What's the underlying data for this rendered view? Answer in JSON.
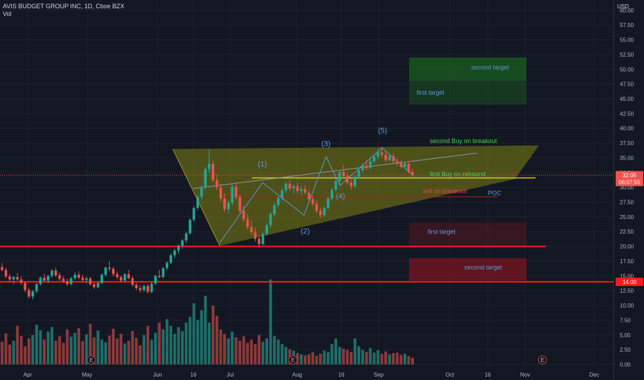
{
  "header": {
    "title": "AVIS BUDGET GROUP INC, 1D, Cboe BZX",
    "sub": "Vol"
  },
  "currency": "USD",
  "colors": {
    "up": "#26a69a",
    "down": "#ef5350",
    "vol_up": "#1f6f68",
    "vol_down": "#8d3a3c",
    "bg": "#131722",
    "grid": "#1e2230",
    "wedge": "#8a8a12",
    "support": "#ff1a1a",
    "target_green": "#1b5e20",
    "target_red": "#7a1520"
  },
  "chart_data": {
    "type": "candlestick",
    "y_axis": {
      "ticks": [
        "60.00",
        "57.50",
        "55.00",
        "52.50",
        "50.00",
        "47.50",
        "45.00",
        "42.50",
        "40.00",
        "37.50",
        "35.00",
        "32.50",
        "30.00",
        "27.50",
        "25.00",
        "22.50",
        "20.00",
        "17.50",
        "15.00",
        "12.50",
        "10.00",
        "7.50",
        "5.00",
        "2.50",
        "0.00"
      ],
      "range": [
        0,
        60
      ]
    },
    "x_axis": {
      "ticks": [
        "Apr",
        "May",
        "Jun",
        "16",
        "Jul",
        "Aug",
        "16",
        "Sep",
        "Oct",
        "16",
        "Nov",
        "Dec"
      ]
    },
    "price_labels": [
      {
        "text": "32.05",
        "value": 32.05,
        "color": "#ef5350"
      },
      {
        "text": "06:07:55",
        "value": 30.9,
        "color": "#ef5350"
      },
      {
        "text": "14.00",
        "value": 14.0,
        "color": "#ff1a1a"
      }
    ],
    "ohlc": [
      [
        16.5,
        17.2,
        15.8,
        16.0
      ],
      [
        16.0,
        16.4,
        14.6,
        14.9
      ],
      [
        14.9,
        15.3,
        13.9,
        14.4
      ],
      [
        14.4,
        15.0,
        13.6,
        14.8
      ],
      [
        14.8,
        15.5,
        14.2,
        14.4
      ],
      [
        14.4,
        14.9,
        13.5,
        13.8
      ],
      [
        13.8,
        14.0,
        12.2,
        12.6
      ],
      [
        12.6,
        13.0,
        11.2,
        11.5
      ],
      [
        11.5,
        12.6,
        11.0,
        12.4
      ],
      [
        12.4,
        13.8,
        12.1,
        13.6
      ],
      [
        13.6,
        14.9,
        13.4,
        14.7
      ],
      [
        14.7,
        15.4,
        14.0,
        14.2
      ],
      [
        14.2,
        15.2,
        13.8,
        15.0
      ],
      [
        15.0,
        16.2,
        14.7,
        15.9
      ],
      [
        15.9,
        16.4,
        14.8,
        15.1
      ],
      [
        15.1,
        15.6,
        14.2,
        14.5
      ],
      [
        14.5,
        15.0,
        13.8,
        14.1
      ],
      [
        14.1,
        14.6,
        13.3,
        13.6
      ],
      [
        13.6,
        14.8,
        13.4,
        14.6
      ],
      [
        14.6,
        15.6,
        14.3,
        15.2
      ],
      [
        15.2,
        15.8,
        14.4,
        14.7
      ],
      [
        14.7,
        15.2,
        13.9,
        14.3
      ],
      [
        14.3,
        14.9,
        13.7,
        14.6
      ],
      [
        14.6,
        14.8,
        13.3,
        13.6
      ],
      [
        13.6,
        13.9,
        12.8,
        13.1
      ],
      [
        13.1,
        14.0,
        12.9,
        13.8
      ],
      [
        13.8,
        15.4,
        13.6,
        15.2
      ],
      [
        15.2,
        16.6,
        14.9,
        16.4
      ],
      [
        16.4,
        17.4,
        15.8,
        16.2
      ],
      [
        16.2,
        16.5,
        14.9,
        15.3
      ],
      [
        15.3,
        15.8,
        14.5,
        14.8
      ],
      [
        14.8,
        15.1,
        13.9,
        14.2
      ],
      [
        14.2,
        15.5,
        14.0,
        15.3
      ],
      [
        15.3,
        16.0,
        14.4,
        14.6
      ],
      [
        14.6,
        15.0,
        13.2,
        13.5
      ],
      [
        13.5,
        13.8,
        12.6,
        12.9
      ],
      [
        12.9,
        13.4,
        12.2,
        12.6
      ],
      [
        12.6,
        13.5,
        12.3,
        13.3
      ],
      [
        13.3,
        13.6,
        12.0,
        12.3
      ],
      [
        12.3,
        13.9,
        12.1,
        13.7
      ],
      [
        13.7,
        15.2,
        13.5,
        15.0
      ],
      [
        15.0,
        16.0,
        14.6,
        14.8
      ],
      [
        14.8,
        16.5,
        14.6,
        16.3
      ],
      [
        16.3,
        17.5,
        16.0,
        17.2
      ],
      [
        17.2,
        18.8,
        17.0,
        18.5
      ],
      [
        18.5,
        19.6,
        18.0,
        19.3
      ],
      [
        19.3,
        20.4,
        18.7,
        20.1
      ],
      [
        20.1,
        21.3,
        19.6,
        21.0
      ],
      [
        21.0,
        22.5,
        20.6,
        22.2
      ],
      [
        22.2,
        24.8,
        22.0,
        24.5
      ],
      [
        24.5,
        26.8,
        24.2,
        26.5
      ],
      [
        26.5,
        28.8,
        26.1,
        28.4
      ],
      [
        28.4,
        30.4,
        27.9,
        30.0
      ],
      [
        30.0,
        33.5,
        29.6,
        33.1
      ],
      [
        33.1,
        36.5,
        32.5,
        34.0
      ],
      [
        34.0,
        34.5,
        30.8,
        31.2
      ],
      [
        31.2,
        32.2,
        29.5,
        30.0
      ],
      [
        30.0,
        30.6,
        27.6,
        28.1
      ],
      [
        28.1,
        29.0,
        25.8,
        26.3
      ],
      [
        26.3,
        27.8,
        25.6,
        27.4
      ],
      [
        27.4,
        30.5,
        27.0,
        30.1
      ],
      [
        30.1,
        30.8,
        27.9,
        28.3
      ],
      [
        28.3,
        28.9,
        25.6,
        26.0
      ],
      [
        26.0,
        26.9,
        24.1,
        24.6
      ],
      [
        24.6,
        25.5,
        22.8,
        23.3
      ],
      [
        23.3,
        24.3,
        21.9,
        22.4
      ],
      [
        22.4,
        23.2,
        20.8,
        21.3
      ],
      [
        21.3,
        21.8,
        19.9,
        20.4
      ],
      [
        20.4,
        22.4,
        20.2,
        22.1
      ],
      [
        22.1,
        23.9,
        21.8,
        23.6
      ],
      [
        23.6,
        25.8,
        23.2,
        25.5
      ],
      [
        25.5,
        27.4,
        25.1,
        27.0
      ],
      [
        27.0,
        28.6,
        26.6,
        28.2
      ],
      [
        28.2,
        29.9,
        27.9,
        29.5
      ],
      [
        29.5,
        30.9,
        29.1,
        30.6
      ],
      [
        30.6,
        31.2,
        29.4,
        29.8
      ],
      [
        29.8,
        30.5,
        28.9,
        30.2
      ],
      [
        30.2,
        30.8,
        29.0,
        29.4
      ],
      [
        29.4,
        30.1,
        28.6,
        29.7
      ],
      [
        29.7,
        30.4,
        28.8,
        29.1
      ],
      [
        29.1,
        29.6,
        27.6,
        28.0
      ],
      [
        28.0,
        28.6,
        26.8,
        27.2
      ],
      [
        27.2,
        27.8,
        25.6,
        26.0
      ],
      [
        26.0,
        26.6,
        24.8,
        25.3
      ],
      [
        25.3,
        26.8,
        25.0,
        26.5
      ],
      [
        26.5,
        28.4,
        26.2,
        28.1
      ],
      [
        28.1,
        29.9,
        27.8,
        29.6
      ],
      [
        29.6,
        31.4,
        29.2,
        31.0
      ],
      [
        31.0,
        32.9,
        30.6,
        32.6
      ],
      [
        32.6,
        33.8,
        31.5,
        31.9
      ],
      [
        31.9,
        32.4,
        30.4,
        30.8
      ],
      [
        30.8,
        31.4,
        29.6,
        30.2
      ],
      [
        30.2,
        32.1,
        30.0,
        31.8
      ],
      [
        31.8,
        33.2,
        31.5,
        32.9
      ],
      [
        32.9,
        34.1,
        32.5,
        33.7
      ],
      [
        33.7,
        34.6,
        32.9,
        33.3
      ],
      [
        33.3,
        34.8,
        33.0,
        34.4
      ],
      [
        34.4,
        35.6,
        34.0,
        35.2
      ],
      [
        35.2,
        36.3,
        34.8,
        35.9
      ],
      [
        35.9,
        36.8,
        35.1,
        35.5
      ],
      [
        35.5,
        36.1,
        34.2,
        34.6
      ],
      [
        34.6,
        35.6,
        34.3,
        35.3
      ],
      [
        35.3,
        35.8,
        34.1,
        34.4
      ],
      [
        34.4,
        35.0,
        33.6,
        34.1
      ],
      [
        34.1,
        34.6,
        33.2,
        33.5
      ],
      [
        33.5,
        34.3,
        33.0,
        34.0
      ],
      [
        34.0,
        34.4,
        32.4,
        32.6
      ],
      [
        32.6,
        33.1,
        31.8,
        32.05
      ]
    ],
    "volume": [
      4.0,
      5.5,
      3.5,
      4.2,
      6.8,
      5.0,
      3.2,
      4.6,
      5.2,
      7.0,
      6.0,
      4.4,
      5.8,
      6.6,
      4.2,
      5.0,
      3.8,
      6.2,
      4.9,
      5.6,
      6.4,
      4.1,
      5.3,
      7.2,
      4.8,
      6.0,
      4.4,
      3.9,
      5.1,
      6.3,
      4.6,
      5.4,
      3.7,
      4.2,
      5.9,
      4.7,
      3.4,
      5.2,
      6.8,
      4.4,
      5.6,
      7.4,
      6.2,
      8.0,
      6.8,
      5.4,
      6.6,
      5.9,
      7.4,
      8.4,
      10.8,
      7.9,
      9.6,
      12.1,
      7.4,
      10.4,
      8.6,
      6.2,
      5.4,
      4.6,
      5.8,
      4.8,
      4.2,
      5.0,
      3.8,
      4.4,
      3.6,
      5.2,
      4.0,
      4.6,
      15.0,
      5.0,
      4.4,
      3.6,
      3.1,
      2.7,
      2.4,
      2.0,
      1.8,
      1.6,
      1.8,
      2.2,
      1.5,
      1.9,
      2.4,
      2.2,
      3.6,
      4.6,
      3.1,
      2.8,
      2.6,
      2.2,
      4.6,
      3.2,
      2.6,
      2.2,
      2.9,
      2.1,
      2.5,
      1.9,
      2.3,
      1.8,
      2.0,
      2.1,
      1.7,
      1.9,
      1.5,
      1.2,
      1.4
    ]
  },
  "annotations": {
    "second_target_top": "second target",
    "first_target_top": "first target",
    "second_buy": "second Buy on breakout",
    "first_buy": "first Buy on rebound",
    "sell": "sell on breakout",
    "poc": "POC",
    "first_target_bottom": "first target",
    "second_target_bottom": "second target",
    "wave_1": "(1)",
    "wave_2": "(2)",
    "wave_3": "(3)",
    "wave_4": "(4)",
    "wave_5": "(5)",
    "earnings_marker": "E"
  }
}
